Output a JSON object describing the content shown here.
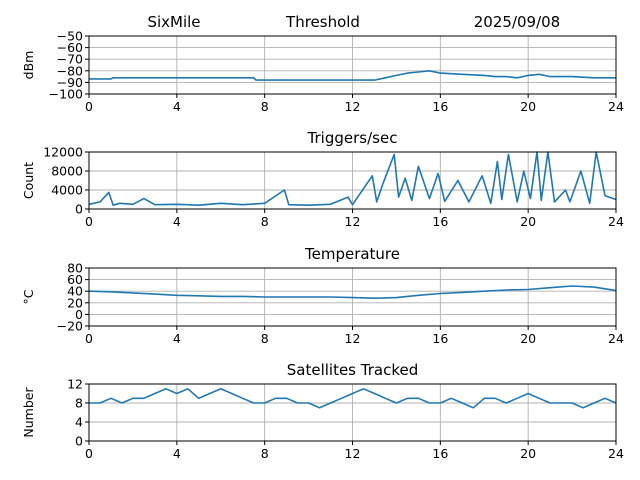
{
  "header": {
    "site": "SixMile",
    "title": "Threshold",
    "date": "2025/09/08"
  },
  "chart_data": [
    {
      "type": "line",
      "title": "",
      "ylabel": "dBm",
      "xlim": [
        0,
        24
      ],
      "ylim": [
        -100,
        -50
      ],
      "xticks": [
        0,
        4,
        8,
        12,
        16,
        20,
        24
      ],
      "yticks": [
        -100,
        -90,
        -80,
        -70,
        -60,
        -50
      ],
      "grid": true,
      "x": [
        0,
        1,
        1.1,
        2,
        3,
        4,
        5,
        6,
        7.5,
        7.6,
        8,
        9,
        10,
        11,
        12,
        13,
        13.5,
        14,
        14.5,
        15,
        15.5,
        16,
        17,
        18,
        18.5,
        19,
        19.5,
        20,
        20.5,
        21,
        22,
        23,
        24
      ],
      "values": [
        -87,
        -87,
        -86,
        -86,
        -86,
        -86,
        -86,
        -86,
        -86,
        -88,
        -88,
        -88,
        -88,
        -88,
        -88,
        -88,
        -86,
        -84,
        -82,
        -81,
        -80,
        -82,
        -83,
        -84,
        -85,
        -85,
        -86,
        -84,
        -83,
        -85,
        -85,
        -86,
        -86
      ]
    },
    {
      "type": "line",
      "title": "Triggers/sec",
      "ylabel": "Count",
      "xlim": [
        0,
        24
      ],
      "ylim": [
        0,
        12000
      ],
      "xticks": [
        0,
        4,
        8,
        12,
        16,
        20,
        24
      ],
      "yticks": [
        0,
        4000,
        8000,
        12000
      ],
      "grid": true,
      "x": [
        0,
        0.5,
        0.9,
        1.1,
        1.4,
        2,
        2.5,
        3,
        4,
        5,
        6,
        7,
        8,
        8.9,
        9.1,
        10,
        11,
        11.8,
        12,
        12.9,
        13.1,
        13.4,
        13.9,
        14.1,
        14.4,
        14.7,
        15,
        15.5,
        15.9,
        16.2,
        16.8,
        17.3,
        17.9,
        18.3,
        18.6,
        18.8,
        19.1,
        19.5,
        19.8,
        20.1,
        20.4,
        20.6,
        20.9,
        21.2,
        21.7,
        21.9,
        22.4,
        22.8,
        23.1,
        23.5,
        24
      ],
      "values": [
        1000,
        1500,
        3500,
        800,
        1200,
        1000,
        2200,
        900,
        1000,
        800,
        1200,
        900,
        1200,
        4000,
        900,
        800,
        1000,
        2500,
        900,
        7000,
        1500,
        5500,
        11500,
        2500,
        6500,
        1800,
        9000,
        2200,
        7500,
        1600,
        6000,
        1500,
        7000,
        1200,
        10000,
        2000,
        11500,
        1500,
        8000,
        2200,
        12000,
        1800,
        12000,
        1500,
        4000,
        1500,
        8000,
        1200,
        12000,
        2800,
        2000
      ]
    },
    {
      "type": "line",
      "title": "Temperature",
      "ylabel": "°C",
      "xlim": [
        0,
        24
      ],
      "ylim": [
        -20,
        80
      ],
      "xticks": [
        0,
        4,
        8,
        12,
        16,
        20,
        24
      ],
      "yticks": [
        -20,
        0,
        20,
        40,
        60,
        80
      ],
      "grid": true,
      "x": [
        0,
        1,
        2,
        3,
        4,
        5,
        6,
        7,
        8,
        9,
        10,
        11,
        12,
        13,
        14,
        15,
        16,
        17,
        18,
        19,
        20,
        21,
        22,
        23,
        24
      ],
      "values": [
        40,
        39,
        37,
        35,
        33,
        32,
        31,
        31,
        30,
        30,
        30,
        30,
        29,
        28,
        29,
        33,
        36,
        38,
        40,
        42,
        43,
        46,
        49,
        47,
        41
      ]
    },
    {
      "type": "line",
      "title": "Satellites Tracked",
      "ylabel": "Number",
      "xlim": [
        0,
        24
      ],
      "ylim": [
        0,
        12
      ],
      "xticks": [
        0,
        4,
        8,
        12,
        16,
        20,
        24
      ],
      "yticks": [
        0,
        4,
        8,
        12
      ],
      "grid": true,
      "x": [
        0,
        0.5,
        1,
        1.5,
        2,
        2.5,
        3,
        3.5,
        4,
        4.5,
        5,
        5.5,
        6,
        6.5,
        7,
        7.5,
        8,
        8.5,
        9,
        9.5,
        10,
        10.5,
        11,
        11.5,
        12,
        12.5,
        13,
        13.5,
        14,
        14.5,
        15,
        15.5,
        16,
        16.5,
        17,
        17.5,
        18,
        18.5,
        19,
        19.5,
        20,
        20.5,
        21,
        21.5,
        22,
        22.5,
        23,
        23.5,
        24
      ],
      "values": [
        8,
        8,
        9,
        8,
        9,
        9,
        10,
        11,
        10,
        11,
        9,
        10,
        11,
        10,
        9,
        8,
        8,
        9,
        9,
        8,
        8,
        7,
        8,
        9,
        10,
        11,
        10,
        9,
        8,
        9,
        9,
        8,
        8,
        9,
        8,
        7,
        9,
        9,
        8,
        9,
        10,
        9,
        8,
        8,
        8,
        7,
        8,
        9,
        8
      ]
    }
  ]
}
